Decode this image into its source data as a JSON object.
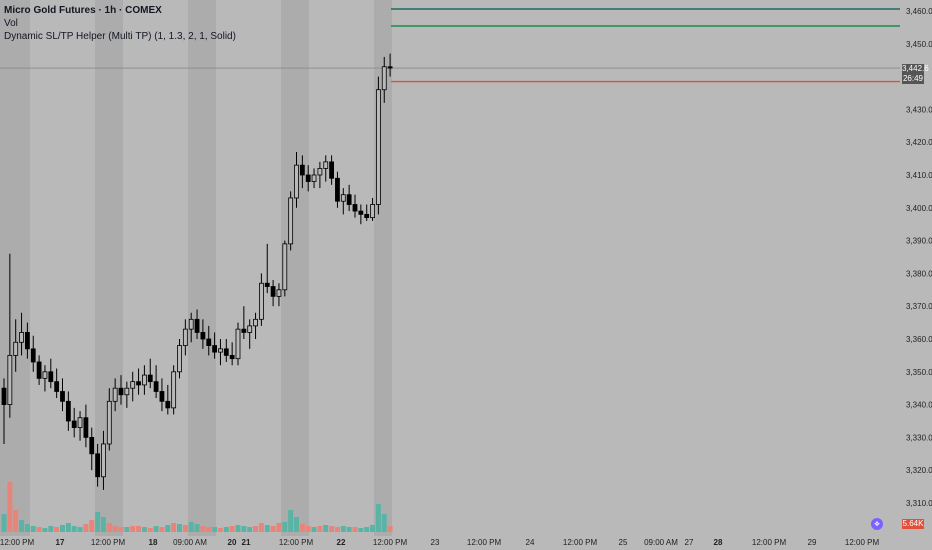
{
  "legend": {
    "title": "Micro Gold Futures · 1h · COMEX",
    "vol": "Vol",
    "indicator": "Dynamic SL/TP Helper (Multi TP) (1, 1.3, 2, 1, Solid)"
  },
  "price_scale": {
    "labels": [
      "3,460.0",
      "3,450.0",
      "3,442.6",
      "3,430.0",
      "3,420.0",
      "3,410.0",
      "3,400.0",
      "3,390.0",
      "3,380.0",
      "3,370.0",
      "3,360.0",
      "3,350.0",
      "3,340.0",
      "3,330.0",
      "3,320.0",
      "3,310.0"
    ],
    "last_price": "3,442.6",
    "countdown": "26:49",
    "volume_label": "5.64K"
  },
  "time_axis": {
    "labels": [
      "12:00 PM",
      "17",
      "12:00 PM",
      "18",
      "09:00 AM",
      "20",
      "21",
      "12:00 PM",
      "22",
      "12:00 PM",
      "23",
      "12:00 PM",
      "24",
      "12:00 PM",
      "25",
      "09:00 AM",
      "27",
      "28",
      "12:00 PM",
      "29",
      "12:00 PM"
    ]
  },
  "colors": {
    "background": "#b9b9b9",
    "session_shade": "#acacac",
    "candle": "#000000",
    "volume_up": "#5bb3a6",
    "volume_down": "#e8857a",
    "tp1": "#1f8a4c",
    "tp2": "#1a6e5c",
    "sl": "#e0503a",
    "last_price_line": "#8a8a8a"
  },
  "levels": {
    "tp2": 3463,
    "tp1": 3456,
    "stop_loss": 3438.5,
    "last_price": 3442.6
  },
  "chart_data": {
    "type": "candlestick",
    "series_name": "Micro Gold Futures · 1h · COMEX",
    "ylim": [
      3305,
      3464
    ],
    "ohlc": [
      [
        3345,
        3348,
        3328,
        3340
      ],
      [
        3340,
        3386,
        3336,
        3355
      ],
      [
        3355,
        3366,
        3350,
        3359
      ],
      [
        3359,
        3368,
        3355,
        3362
      ],
      [
        3362,
        3365,
        3354,
        3357
      ],
      [
        3357,
        3361,
        3350,
        3353
      ],
      [
        3353,
        3355,
        3346,
        3348
      ],
      [
        3348,
        3352,
        3344,
        3350
      ],
      [
        3350,
        3354,
        3345,
        3347
      ],
      [
        3347,
        3351,
        3342,
        3344
      ],
      [
        3344,
        3348,
        3338,
        3341
      ],
      [
        3341,
        3344,
        3332,
        3335
      ],
      [
        3335,
        3339,
        3330,
        3333
      ],
      [
        3333,
        3338,
        3329,
        3336
      ],
      [
        3336,
        3340,
        3327,
        3330
      ],
      [
        3330,
        3333,
        3320,
        3325
      ],
      [
        3325,
        3328,
        3315,
        3318
      ],
      [
        3318,
        3332,
        3314,
        3328
      ],
      [
        3328,
        3345,
        3326,
        3341
      ],
      [
        3341,
        3348,
        3338,
        3345
      ],
      [
        3345,
        3349,
        3340,
        3343
      ],
      [
        3343,
        3347,
        3339,
        3345
      ],
      [
        3345,
        3350,
        3341,
        3347
      ],
      [
        3347,
        3351,
        3343,
        3346
      ],
      [
        3346,
        3352,
        3343,
        3349
      ],
      [
        3349,
        3354,
        3345,
        3347
      ],
      [
        3347,
        3352,
        3342,
        3344
      ],
      [
        3344,
        3348,
        3338,
        3341
      ],
      [
        3341,
        3346,
        3337,
        3339
      ],
      [
        3339,
        3352,
        3337,
        3350
      ],
      [
        3350,
        3360,
        3348,
        3358
      ],
      [
        3358,
        3366,
        3355,
        3363
      ],
      [
        3363,
        3368,
        3359,
        3366
      ],
      [
        3366,
        3369,
        3360,
        3362
      ],
      [
        3362,
        3366,
        3357,
        3360
      ],
      [
        3360,
        3364,
        3355,
        3358
      ],
      [
        3358,
        3362,
        3354,
        3356
      ],
      [
        3356,
        3360,
        3352,
        3357
      ],
      [
        3357,
        3360,
        3353,
        3355
      ],
      [
        3355,
        3359,
        3352,
        3354
      ],
      [
        3354,
        3365,
        3352,
        3363
      ],
      [
        3363,
        3370,
        3360,
        3362
      ],
      [
        3362,
        3366,
        3357,
        3364
      ],
      [
        3364,
        3368,
        3360,
        3366
      ],
      [
        3366,
        3380,
        3364,
        3377
      ],
      [
        3377,
        3389,
        3374,
        3376
      ],
      [
        3376,
        3378,
        3370,
        3373
      ],
      [
        3373,
        3377,
        3370,
        3375
      ],
      [
        3375,
        3390,
        3373,
        3389
      ],
      [
        3389,
        3405,
        3387,
        3403
      ],
      [
        3403,
        3417,
        3400,
        3413
      ],
      [
        3413,
        3416,
        3406,
        3410
      ],
      [
        3410,
        3413,
        3405,
        3408
      ],
      [
        3408,
        3412,
        3406,
        3410
      ],
      [
        3410,
        3414,
        3406,
        3412
      ],
      [
        3412,
        3416,
        3408,
        3414
      ],
      [
        3414,
        3416,
        3407,
        3409
      ],
      [
        3409,
        3411,
        3400,
        3402
      ],
      [
        3402,
        3406,
        3398,
        3404
      ],
      [
        3404,
        3407,
        3399,
        3401
      ],
      [
        3401,
        3404,
        3397,
        3399
      ],
      [
        3399,
        3401,
        3395,
        3398
      ],
      [
        3398,
        3401,
        3396,
        3397
      ],
      [
        3397,
        3403,
        3396,
        3401
      ],
      [
        3401,
        3440,
        3398,
        3436
      ],
      [
        3436,
        3446,
        3432,
        3443
      ],
      [
        3443,
        3447,
        3440,
        3442.6
      ]
    ],
    "volume": [
      [
        18,
        1
      ],
      [
        50,
        0
      ],
      [
        22,
        0
      ],
      [
        12,
        1
      ],
      [
        8,
        1
      ],
      [
        6,
        1
      ],
      [
        5,
        0
      ],
      [
        4,
        1
      ],
      [
        6,
        1
      ],
      [
        5,
        0
      ],
      [
        7,
        1
      ],
      [
        9,
        1
      ],
      [
        6,
        1
      ],
      [
        5,
        1
      ],
      [
        8,
        0
      ],
      [
        12,
        0
      ],
      [
        20,
        1
      ],
      [
        15,
        1
      ],
      [
        9,
        0
      ],
      [
        6,
        0
      ],
      [
        5,
        0
      ],
      [
        5,
        1
      ],
      [
        6,
        0
      ],
      [
        6,
        0
      ],
      [
        5,
        1
      ],
      [
        4,
        0
      ],
      [
        6,
        1
      ],
      [
        5,
        0
      ],
      [
        7,
        1
      ],
      [
        9,
        0
      ],
      [
        8,
        1
      ],
      [
        7,
        0
      ],
      [
        10,
        1
      ],
      [
        8,
        1
      ],
      [
        6,
        0
      ],
      [
        5,
        0
      ],
      [
        5,
        1
      ],
      [
        4,
        0
      ],
      [
        5,
        1
      ],
      [
        6,
        0
      ],
      [
        7,
        1
      ],
      [
        6,
        1
      ],
      [
        5,
        1
      ],
      [
        6,
        0
      ],
      [
        9,
        0
      ],
      [
        7,
        1
      ],
      [
        6,
        0
      ],
      [
        9,
        0
      ],
      [
        10,
        1
      ],
      [
        22,
        1
      ],
      [
        15,
        1
      ],
      [
        8,
        0
      ],
      [
        6,
        0
      ],
      [
        5,
        1
      ],
      [
        6,
        0
      ],
      [
        7,
        1
      ],
      [
        6,
        0
      ],
      [
        5,
        0
      ],
      [
        6,
        1
      ],
      [
        5,
        1
      ],
      [
        5,
        0
      ],
      [
        4,
        1
      ],
      [
        5,
        1
      ],
      [
        7,
        1
      ],
      [
        28,
        1
      ],
      [
        18,
        1
      ],
      [
        6,
        0
      ]
    ]
  }
}
